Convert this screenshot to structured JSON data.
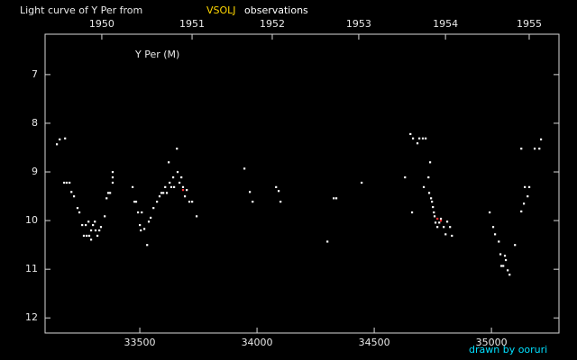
{
  "chart_data": {
    "type": "scatter",
    "title": "Light curve of Y Per from",
    "title_highlight": "VSOLJ",
    "title_suffix": "observations",
    "y_label": "Y Per (M)",
    "credit": "drawn by ooruri",
    "xlim": [
      33096,
      35288
    ],
    "xticks": [
      33500,
      34000,
      34500,
      35000
    ],
    "x2ticks": [
      {
        "value": 33338,
        "label": "1950"
      },
      {
        "value": 33723,
        "label": "1951"
      },
      {
        "value": 34065,
        "label": "1952"
      },
      {
        "value": 34434,
        "label": "1953"
      },
      {
        "value": 34804,
        "label": "1954"
      },
      {
        "value": 35161,
        "label": "1955"
      }
    ],
    "ylim": [
      6.17,
      12.31
    ],
    "y_inverted": true,
    "yticks": [
      7,
      8,
      9,
      10,
      11,
      12
    ],
    "title_color": "#ffffff",
    "highlight_color": "#ffd700",
    "credit_color": "#00e0ff",
    "series": [
      {
        "color": "#ffffff",
        "x": [
          33146,
          33158,
          33181,
          33177,
          33188,
          33200,
          33208,
          33219,
          33234,
          33242,
          33254,
          33261,
          33269,
          33273,
          33281,
          33284,
          33292,
          33292,
          33300,
          33308,
          33311,
          33319,
          33327,
          33334,
          33350,
          33358,
          33365,
          33373,
          33384,
          33384,
          33384,
          33469,
          33477,
          33484,
          33492,
          33500,
          33504,
          33508,
          33519,
          33531,
          33538,
          33546,
          33558,
          33573,
          33584,
          33592,
          33600,
          33608,
          33615,
          33623,
          33627,
          33634,
          33642,
          33646,
          33658,
          33661,
          33669,
          33677,
          33684,
          33692,
          33700,
          33711,
          33723,
          33742,
          33946,
          33969,
          33981,
          34081,
          34092,
          34100,
          34300,
          34327,
          34338,
          34446,
          34631,
          34654,
          34665,
          34684,
          34692,
          34707,
          34719,
          34711,
          34731,
          34734,
          34742,
          34746,
          34750,
          34754,
          34757,
          34761,
          34769,
          34777,
          34784,
          34796,
          34804,
          34811,
          34823,
          34831,
          34992,
          35007,
          35015,
          35031,
          35038,
          35042,
          35050,
          35057,
          35061,
          35069,
          35077,
          35100,
          35127,
          35127,
          35138,
          35142,
          35154,
          35161,
          35184,
          35204,
          35211,
          34661,
          34738
        ],
        "values": [
          8.43,
          8.33,
          8.31,
          9.22,
          9.22,
          9.22,
          9.41,
          9.5,
          9.74,
          9.83,
          10.09,
          10.31,
          10.09,
          10.31,
          10.02,
          10.31,
          10.39,
          10.2,
          10.09,
          10.02,
          10.2,
          10.31,
          10.2,
          10.13,
          9.91,
          9.54,
          9.43,
          9.43,
          9.0,
          9.11,
          9.22,
          9.31,
          9.61,
          9.61,
          9.83,
          10.09,
          10.2,
          9.83,
          10.17,
          10.5,
          10.02,
          9.94,
          9.74,
          9.61,
          9.5,
          9.43,
          9.43,
          9.31,
          9.43,
          8.8,
          9.22,
          9.31,
          9.11,
          9.31,
          8.52,
          9.0,
          9.22,
          9.11,
          9.31,
          9.5,
          9.37,
          9.61,
          9.61,
          9.91,
          8.93,
          9.41,
          9.61,
          9.31,
          9.39,
          9.61,
          10.43,
          9.54,
          9.54,
          9.22,
          9.11,
          8.22,
          8.31,
          8.41,
          8.31,
          8.31,
          8.31,
          9.31,
          9.11,
          9.43,
          9.54,
          9.61,
          9.72,
          9.83,
          9.91,
          10.04,
          10.13,
          10.04,
          9.96,
          10.13,
          10.28,
          10.02,
          10.13,
          10.31,
          9.83,
          10.13,
          10.28,
          10.43,
          10.69,
          10.93,
          10.93,
          10.72,
          10.81,
          11.02,
          11.11,
          10.5,
          8.52,
          9.81,
          9.65,
          9.31,
          9.5,
          9.31,
          8.52,
          8.52,
          8.33,
          9.83,
          8.8
        ]
      },
      {
        "color": "#ff3030",
        "x": [
          33684,
          34769,
          34784
        ],
        "values": [
          9.37,
          9.96,
          10.0
        ]
      }
    ]
  }
}
